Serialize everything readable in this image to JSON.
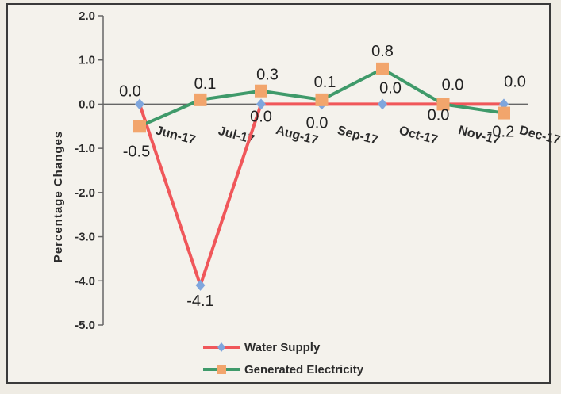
{
  "chart_data": {
    "type": "line",
    "categories": [
      "Jun-17",
      "Jul-17",
      "Aug-17",
      "Sep-17",
      "Oct-17",
      "Nov-17",
      "Dec-17"
    ],
    "series": [
      {
        "name": "Water Supply",
        "values": [
          0.0,
          -4.1,
          0.0,
          0.0,
          0.0,
          0.0,
          0.0
        ],
        "color": "#f0575a",
        "marker": "diamond",
        "marker_color": "#7fa6dd"
      },
      {
        "name": "Generated Electricity",
        "values": [
          -0.5,
          0.1,
          0.3,
          0.1,
          0.8,
          0.0,
          -0.2
        ],
        "color": "#3f9a6a",
        "marker": "square",
        "marker_color": "#f2a56c"
      }
    ],
    "title": "",
    "xlabel": "",
    "ylabel": "Percentage Changes",
    "ylim": [
      -5.0,
      2.0
    ],
    "yticks": [
      "2.0",
      "1.0",
      "0.0",
      "-1.0",
      "-2.0",
      "-3.0",
      "-4.0",
      "-5.0"
    ],
    "data_labels": {
      "Water Supply": [
        "0.0",
        "-4.1",
        "0.0",
        "0.0",
        "0.0",
        "0.0",
        "0.0"
      ],
      "Generated Electricity": [
        "-0.5",
        "0.1",
        "0.3",
        "0.1",
        "0.8",
        "0.0",
        "-0.2"
      ]
    },
    "grid": false,
    "legend": "bottom-center"
  }
}
